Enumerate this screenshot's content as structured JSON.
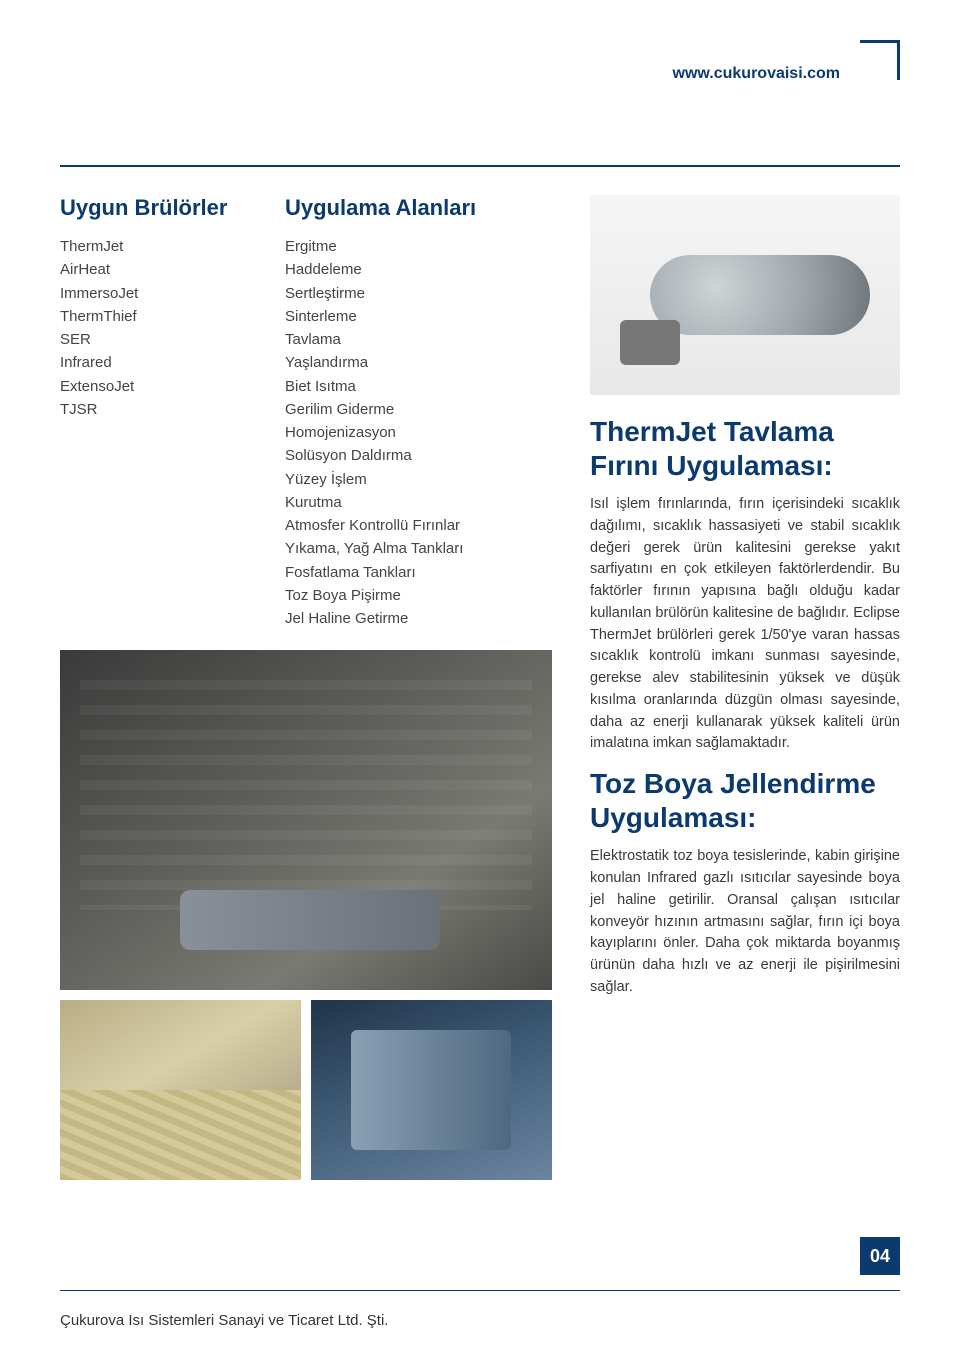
{
  "header": {
    "url": "www.cukurovaisi.com"
  },
  "columns": {
    "burners": {
      "title": "Uygun Brülörler",
      "items": [
        "ThermJet",
        "AirHeat",
        "ImmersoJet",
        "ThermThief",
        "SER",
        "Infrared",
        "ExtensoJet",
        "TJSR"
      ]
    },
    "applications": {
      "title": "Uygulama Alanları",
      "items": [
        "Ergitme",
        "Haddeleme",
        "Sertleştirme",
        "Sinterleme",
        "Tavlama",
        "Yaşlandırma",
        "Biet Isıtma",
        "Gerilim Giderme",
        "Homojenizasyon",
        "Solüsyon Daldırma",
        "Yüzey İşlem",
        "Kurutma",
        "Atmosfer Kontrollü Fırınlar",
        "Yıkama, Yağ Alma Tankları",
        "Fosfatlama Tankları",
        "Toz Boya Pişirme",
        "Jel Haline Getirme"
      ]
    }
  },
  "right": {
    "section1": {
      "title": "ThermJet Tavlama Fırını Uygulaması:",
      "body": "Isıl işlem fırınlarında, fırın içerisindeki sıcaklık dağılımı, sıcaklık hassasiyeti ve stabil sıcaklık değeri gerek ürün kalitesini gerekse yakıt sarfiyatını en çok etkileyen faktörlerdendir. Bu faktörler fırının yapısına bağlı olduğu kadar kullanılan brülörün kalitesine de bağlıdır. Eclipse ThermJet brülörleri gerek 1/50'ye varan hassas sıcaklık kontrolü imkanı sunması sayesinde, gerekse alev stabilitesinin yüksek ve düşük kısılma oranlarında düzgün olması sayesinde, daha az enerji kullanarak yüksek kaliteli ürün imalatına imkan sağlamaktadır."
    },
    "section2": {
      "title": "Toz Boya Jellendirme Uygulaması:",
      "body": "Elektrostatik toz boya tesislerinde, kabin girişine konulan Infrared gazlı ısıtıcılar sayesinde boya jel haline getirilir. Oransal çalışan ısıtıcılar konveyör hızının artmasını sağlar, fırın içi boya kayıplarını önler. Daha çok miktarda boyanmış ürünün daha hızlı ve az enerji ile pişirilmesini sağlar."
    }
  },
  "footer": {
    "company": "Çukurova Isı Sistemleri Sanayi ve Ticaret Ltd. Şti.",
    "page": "04"
  },
  "style": {
    "accent_color": "#0b3a6f",
    "text_color": "#333333",
    "background": "#ffffff",
    "title_fontsize_col": 22,
    "title_fontsize_right": 28,
    "body_fontsize": 14.5,
    "list_fontsize": 15
  }
}
